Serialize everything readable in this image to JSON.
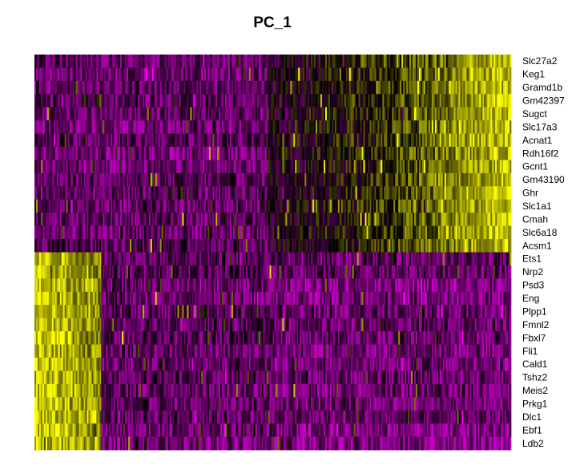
{
  "chart_data": {
    "type": "heatmap",
    "title": "PC_1",
    "xlabel": "",
    "ylabel": "",
    "legend": "none",
    "grid": false,
    "color_scale": {
      "low": "#ff00ff",
      "mid": "#000000",
      "high": "#ffff00"
    },
    "rows": [
      {
        "gene": "Slc27a2",
        "group": "positive"
      },
      {
        "gene": "Keg1",
        "group": "positive"
      },
      {
        "gene": "Gramd1b",
        "group": "positive"
      },
      {
        "gene": "Gm42397",
        "group": "positive"
      },
      {
        "gene": "Sugct",
        "group": "positive"
      },
      {
        "gene": "Slc17a3",
        "group": "positive"
      },
      {
        "gene": "Acnat1",
        "group": "positive"
      },
      {
        "gene": "Rdh16f2",
        "group": "positive"
      },
      {
        "gene": "Gcnt1",
        "group": "positive"
      },
      {
        "gene": "Gm43190",
        "group": "positive"
      },
      {
        "gene": "Ghr",
        "group": "positive"
      },
      {
        "gene": "Slc1a1",
        "group": "positive"
      },
      {
        "gene": "Cmah",
        "group": "positive"
      },
      {
        "gene": "Slc6a18",
        "group": "positive"
      },
      {
        "gene": "Acsm1",
        "group": "positive"
      },
      {
        "gene": "Ets1",
        "group": "negative"
      },
      {
        "gene": "Nrp2",
        "group": "negative"
      },
      {
        "gene": "Psd3",
        "group": "negative"
      },
      {
        "gene": "Eng",
        "group": "negative"
      },
      {
        "gene": "Plpp1",
        "group": "negative"
      },
      {
        "gene": "Fmnl2",
        "group": "negative"
      },
      {
        "gene": "Fbxl7",
        "group": "negative"
      },
      {
        "gene": "Fli1",
        "group": "negative"
      },
      {
        "gene": "Cald1",
        "group": "negative"
      },
      {
        "gene": "Tshz2",
        "group": "negative"
      },
      {
        "gene": "Meis2",
        "group": "negative"
      },
      {
        "gene": "Prkg1",
        "group": "negative"
      },
      {
        "gene": "Dlc1",
        "group": "negative"
      },
      {
        "gene": "Ebf1",
        "group": "negative"
      },
      {
        "gene": "Ldb2",
        "group": "negative"
      }
    ]
  }
}
